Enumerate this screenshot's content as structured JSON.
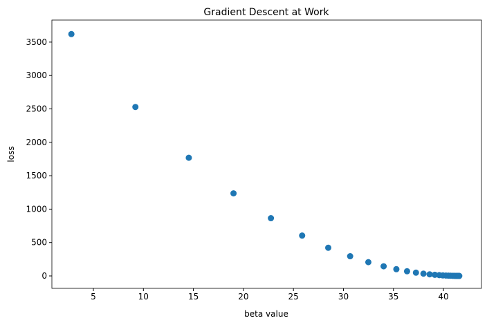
{
  "chart_data": {
    "type": "scatter",
    "title": "Gradient Descent at Work",
    "x_label": "beta value",
    "y_label": "loss",
    "color": "#1f77b4",
    "x": [
      2.8,
      9.2,
      14.54,
      19.01,
      22.75,
      25.87,
      28.48,
      30.67,
      32.49,
      34.02,
      35.29,
      36.36,
      37.25,
      38.0,
      38.62,
      39.14,
      39.58,
      39.94,
      40.25,
      40.5,
      40.71,
      40.89,
      41.04,
      41.17,
      41.27,
      41.36,
      41.43,
      41.49,
      41.54,
      41.58
    ],
    "values": [
      3620,
      2529,
      1769,
      1236,
      864,
      604,
      422,
      295,
      206,
      144,
      101,
      70,
      49,
      34,
      24,
      17,
      12,
      8,
      6,
      4,
      3,
      2,
      1.4,
      0.9,
      0.7,
      0.5,
      0.3,
      0.2,
      0.2,
      0.1
    ],
    "xlim": [
      0.85,
      43.8
    ],
    "xticks": [
      5,
      10,
      15,
      20,
      25,
      30,
      35,
      40
    ],
    "ylim": [
      -186,
      3830
    ],
    "yticks": [
      0,
      500,
      1000,
      1500,
      2000,
      2500,
      3000,
      3500
    ],
    "grid": false
  }
}
